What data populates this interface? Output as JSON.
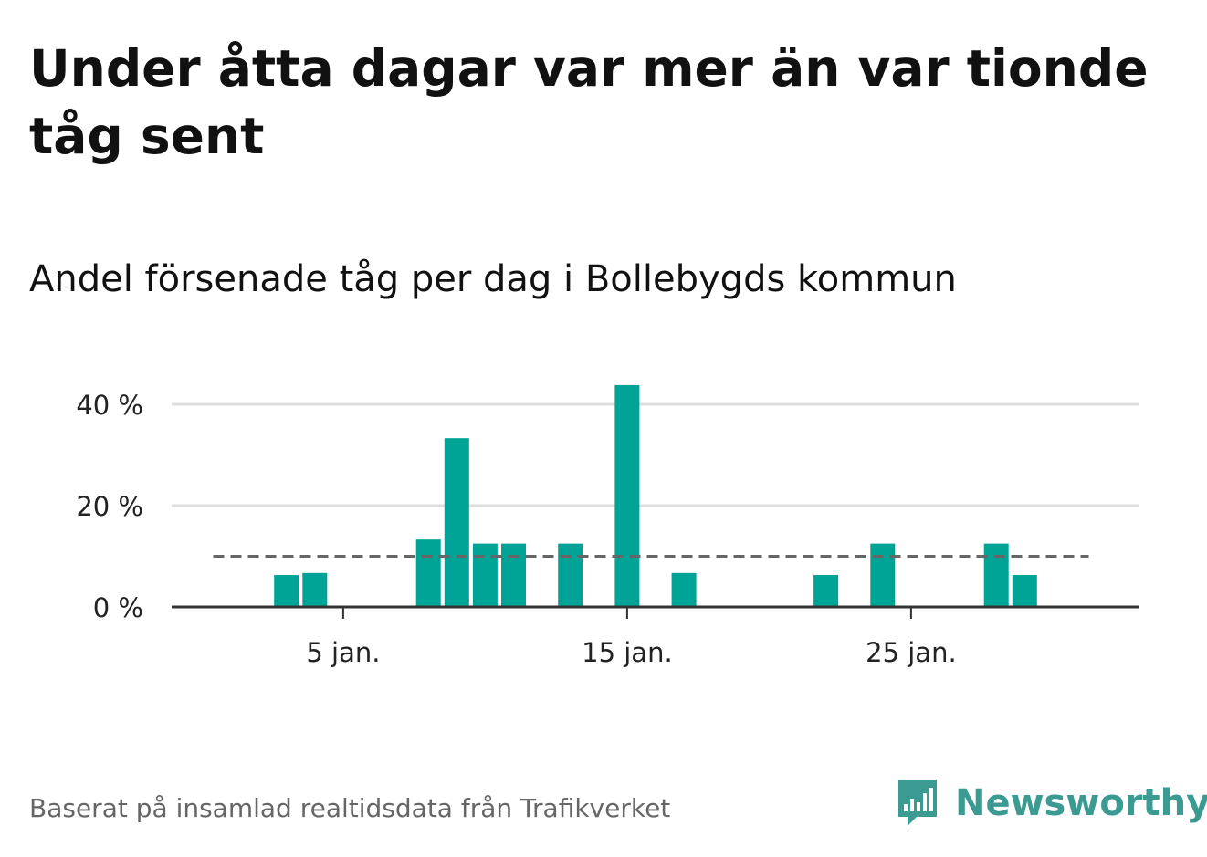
{
  "title": "Under åtta dagar var mer än var tionde tåg sent",
  "subtitle": "Andel försenade tåg per dag i Bollebygds kommun",
  "footer": {
    "source": "Baserat på insamlad realtidsdata från Trafikverket",
    "brand": "Newsworthy"
  },
  "colors": {
    "bar": "#00a497",
    "reference_line": "#666666",
    "grid": "#dddddd",
    "brand": "#3b9b92"
  },
  "chart_data": {
    "type": "bar",
    "title": "Andel försenade tåg per dag i Bollebygds kommun",
    "xlabel": "",
    "ylabel": "",
    "x_unit": "day of January",
    "x": [
      1,
      2,
      3,
      4,
      5,
      6,
      7,
      8,
      9,
      10,
      11,
      12,
      13,
      14,
      15,
      16,
      17,
      18,
      19,
      20,
      21,
      22,
      23,
      24,
      25,
      26,
      27,
      28,
      29,
      30,
      31
    ],
    "values": [
      0,
      0,
      6.3,
      6.7,
      0,
      0,
      0,
      13.3,
      33.3,
      12.5,
      12.5,
      0,
      12.5,
      0,
      43.8,
      0,
      6.7,
      0,
      0,
      0,
      0,
      6.3,
      0,
      12.5,
      0,
      0,
      0,
      12.5,
      6.3,
      0,
      0
    ],
    "reference_line": 10,
    "ylim": [
      0,
      40
    ],
    "yticks": [
      0,
      20,
      40
    ],
    "ytick_labels": [
      "0 %",
      "20 %",
      "40 %"
    ],
    "xticks": [
      5,
      15,
      25
    ],
    "xtick_labels": [
      "5 jan.",
      "15 jan.",
      "25 jan."
    ],
    "grid": true,
    "legend": "none"
  }
}
